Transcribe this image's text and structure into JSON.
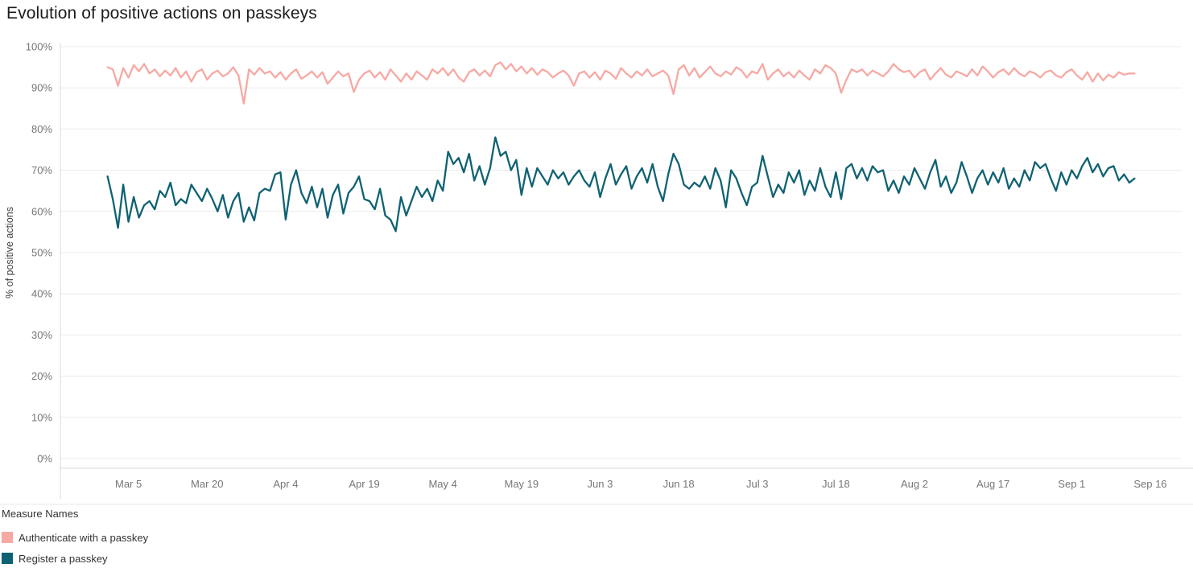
{
  "title": "Evolution of positive actions on passkeys",
  "colors": {
    "authenticate": "#f6a9a3",
    "register": "#0f6273",
    "grid": "#ececec",
    "axis_line": "#d8d8d8",
    "separator": "#e9e9e9",
    "axis_text": "#767676",
    "title_text": "#1c1c1c",
    "legend_text": "#333333"
  },
  "legend": {
    "title": "Measure Names",
    "items": [
      {
        "label": "Authenticate with a passkey",
        "color": "#f6a9a3"
      },
      {
        "label": "Register a passkey",
        "color": "#0f6273"
      }
    ]
  },
  "chart_data": {
    "type": "line",
    "title": "Evolution of positive actions on passkeys",
    "xlabel": "",
    "ylabel": "% of positive actions",
    "ylim": [
      0,
      100
    ],
    "grid": true,
    "legend_position": "bottom-left",
    "y_ticks": [
      "0%",
      "10%",
      "20%",
      "30%",
      "40%",
      "50%",
      "60%",
      "70%",
      "80%",
      "90%",
      "100%"
    ],
    "x_tick_labels": [
      "Mar 5",
      "Mar 20",
      "Apr 4",
      "Apr 19",
      "May 4",
      "May 19",
      "Jun 3",
      "Jun 18",
      "Jul 3",
      "Jul 18",
      "Aug 2",
      "Aug 17",
      "Sep 1",
      "Sep 16"
    ],
    "x_tick_day_index": [
      4,
      19,
      34,
      49,
      64,
      79,
      94,
      109,
      124,
      139,
      154,
      169,
      184,
      199
    ],
    "x_domain_day_index": [
      -9,
      205
    ],
    "x_start_label": "Mar 1",
    "series": [
      {
        "name": "Authenticate with a passkey",
        "color": "#f6a9a3",
        "values": [
          95.0,
          94.5,
          90.5,
          94.8,
          92.5,
          95.5,
          94.0,
          95.8,
          93.5,
          94.5,
          92.8,
          94.2,
          93.0,
          94.8,
          92.5,
          94.0,
          91.5,
          93.8,
          94.5,
          92.0,
          93.5,
          94.2,
          92.8,
          93.5,
          95.0,
          93.0,
          86.2,
          94.5,
          93.2,
          94.8,
          93.5,
          94.0,
          92.5,
          93.8,
          92.0,
          93.5,
          94.5,
          92.2,
          93.0,
          94.0,
          92.5,
          93.8,
          91.0,
          92.5,
          94.0,
          92.8,
          93.5,
          89.0,
          92.0,
          93.5,
          94.2,
          92.5,
          93.8,
          92.0,
          94.5,
          93.0,
          91.5,
          93.5,
          92.0,
          94.0,
          93.0,
          92.0,
          94.5,
          93.5,
          94.8,
          93.0,
          94.5,
          92.5,
          91.5,
          93.8,
          94.5,
          93.0,
          94.2,
          92.8,
          95.5,
          96.2,
          94.5,
          95.8,
          94.0,
          95.2,
          93.5,
          94.8,
          93.2,
          94.5,
          93.8,
          92.5,
          93.5,
          94.2,
          93.0,
          90.5,
          93.5,
          94.0,
          92.5,
          93.8,
          92.0,
          94.2,
          93.5,
          92.2,
          94.8,
          93.5,
          92.5,
          94.0,
          93.0,
          94.5,
          92.8,
          93.5,
          94.2,
          93.0,
          88.5,
          94.5,
          95.5,
          93.0,
          94.8,
          92.5,
          93.8,
          95.2,
          93.5,
          92.8,
          94.0,
          93.2,
          95.0,
          94.2,
          92.5,
          94.0,
          93.5,
          95.8,
          92.0,
          93.5,
          94.5,
          92.8,
          93.8,
          92.5,
          94.2,
          93.0,
          92.0,
          94.5,
          93.5,
          95.5,
          94.8,
          93.5,
          88.8,
          92.0,
          94.5,
          93.8,
          94.5,
          93.0,
          94.2,
          93.5,
          92.8,
          94.0,
          95.8,
          94.5,
          93.8,
          94.2,
          92.5,
          93.8,
          94.5,
          92.0,
          93.5,
          94.8,
          93.2,
          92.5,
          94.0,
          93.5,
          92.8,
          94.5,
          93.0,
          95.2,
          94.0,
          92.5,
          93.8,
          94.5,
          93.2,
          94.8,
          93.5,
          92.8,
          94.0,
          93.5,
          92.5,
          93.8,
          94.2,
          93.0,
          92.5,
          93.8,
          94.5,
          93.0,
          92.0,
          93.8,
          91.5,
          93.5,
          91.8,
          93.2,
          92.5,
          93.8,
          93.2,
          93.5,
          93.5
        ]
      },
      {
        "name": "Register a passkey",
        "color": "#0f6273",
        "values": [
          68.5,
          63.0,
          56.0,
          66.5,
          57.5,
          63.5,
          58.5,
          61.5,
          62.5,
          60.5,
          65.0,
          63.5,
          67.0,
          61.5,
          63.0,
          62.0,
          66.5,
          64.5,
          62.5,
          65.5,
          63.0,
          60.0,
          64.0,
          58.5,
          62.5,
          64.5,
          57.5,
          61.0,
          57.8,
          64.5,
          65.5,
          65.0,
          69.0,
          69.5,
          58.0,
          66.5,
          70.0,
          64.5,
          62.0,
          66.0,
          61.0,
          65.5,
          58.5,
          64.0,
          66.5,
          59.5,
          64.5,
          66.0,
          68.5,
          63.0,
          62.5,
          60.5,
          65.5,
          59.0,
          58.0,
          55.2,
          63.5,
          59.0,
          62.5,
          66.0,
          63.5,
          65.5,
          62.5,
          67.5,
          65.0,
          74.5,
          71.5,
          73.0,
          69.5,
          74.0,
          67.5,
          71.0,
          66.5,
          70.5,
          78.0,
          73.5,
          74.5,
          70.0,
          72.5,
          64.0,
          70.5,
          66.0,
          70.5,
          68.5,
          66.5,
          70.0,
          68.0,
          69.5,
          66.5,
          68.5,
          70.0,
          67.5,
          66.0,
          69.5,
          63.5,
          68.0,
          71.5,
          66.5,
          69.0,
          71.0,
          65.5,
          68.5,
          70.5,
          67.0,
          71.5,
          66.0,
          62.5,
          69.0,
          74.0,
          71.5,
          66.5,
          65.5,
          67.0,
          66.0,
          68.5,
          65.5,
          70.5,
          67.5,
          61.0,
          70.0,
          68.0,
          64.5,
          61.5,
          66.0,
          67.0,
          73.5,
          68.5,
          63.5,
          66.5,
          64.5,
          69.5,
          67.0,
          70.0,
          64.0,
          67.5,
          65.0,
          70.5,
          66.0,
          63.5,
          69.5,
          63.0,
          70.5,
          71.5,
          68.0,
          70.5,
          67.5,
          71.0,
          69.5,
          70.0,
          65.0,
          67.5,
          64.5,
          68.5,
          66.5,
          70.5,
          68.0,
          65.5,
          69.5,
          72.5,
          66.0,
          68.5,
          64.5,
          67.0,
          72.0,
          68.5,
          64.5,
          68.0,
          70.0,
          66.5,
          69.5,
          67.0,
          70.5,
          65.5,
          68.0,
          66.0,
          70.0,
          67.5,
          72.0,
          70.5,
          71.5,
          68.0,
          65.0,
          69.5,
          66.5,
          70.0,
          68.0,
          71.0,
          73.0,
          69.5,
          71.5,
          68.5,
          70.5,
          71.0,
          67.5,
          69.0,
          67.0,
          68.0
        ]
      }
    ]
  }
}
